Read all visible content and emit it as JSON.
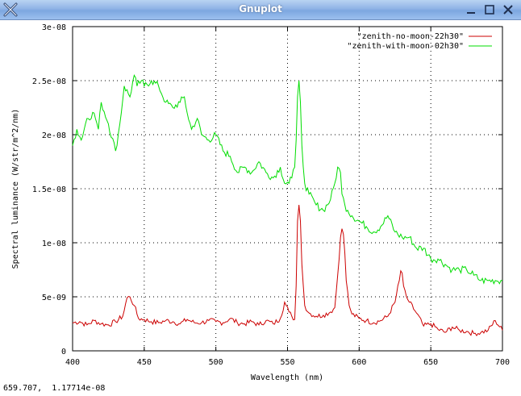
{
  "window": {
    "title": "Gnuplot",
    "app_icon": "x-icon",
    "buttons": [
      "minimize-icon",
      "maximize-icon",
      "close-icon"
    ]
  },
  "status_bar": {
    "coords": "659.707,  1.17714e-08"
  },
  "colors": {
    "series1": "#cc0000",
    "series2": "#00dd00",
    "plot_bg": "#ffffff",
    "titlebar": "#8fb3e6"
  },
  "chart_data": {
    "type": "line",
    "title": "",
    "xlabel": "Wavelength (nm)",
    "ylabel": "Spectral luminance (W/str/m^2/nm)",
    "xlim": [
      400,
      700
    ],
    "ylim": [
      0,
      3e-08
    ],
    "x_ticks": [
      400,
      450,
      500,
      550,
      600,
      650,
      700
    ],
    "x_tick_labels": [
      "400",
      "450",
      "500",
      "550",
      "600",
      "650",
      "700"
    ],
    "y_ticks": [
      0,
      5e-09,
      1e-08,
      1.5e-08,
      2e-08,
      2.5e-08,
      3e-08
    ],
    "y_tick_labels": [
      "0",
      "5e-09",
      "1e-08",
      "1.5e-08",
      "2e-08",
      "2.5e-08",
      "3e-08"
    ],
    "grid": true,
    "legend_position": "top-right",
    "series": [
      {
        "name": "\"zenith-no-moon-22h30\"",
        "color": "#cc0000",
        "x": [
          400,
          405,
          410,
          415,
          420,
          425,
          430,
          435,
          438,
          440,
          443,
          446,
          450,
          455,
          460,
          465,
          470,
          475,
          480,
          485,
          490,
          495,
          500,
          505,
          510,
          515,
          520,
          525,
          530,
          535,
          540,
          545,
          548,
          551,
          553,
          555,
          556,
          557,
          558,
          559,
          560,
          562,
          565,
          570,
          575,
          580,
          583,
          585,
          587,
          588,
          589,
          590,
          591,
          593,
          595,
          600,
          605,
          610,
          615,
          620,
          625,
          628,
          629,
          630,
          631,
          633,
          635,
          640,
          645,
          650,
          655,
          660,
          665,
          670,
          675,
          680,
          685,
          690,
          695,
          700
        ],
        "y": [
          2.6e-09,
          2.7e-09,
          2.4e-09,
          2.8e-09,
          2.5e-09,
          2.4e-09,
          2.7e-09,
          3.2e-09,
          4.9e-09,
          5e-09,
          4.2e-09,
          3e-09,
          2.9e-09,
          2.7e-09,
          2.6e-09,
          2.8e-09,
          2.7e-09,
          2.5e-09,
          2.9e-09,
          2.6e-09,
          2.6e-09,
          2.8e-09,
          2.7e-09,
          2.6e-09,
          3e-09,
          2.6e-09,
          2.5e-09,
          2.7e-09,
          2.4e-09,
          2.8e-09,
          2.5e-09,
          3e-09,
          4.5e-09,
          3.6e-09,
          3.2e-09,
          2.9e-09,
          6e-09,
          1.2e-08,
          1.35e-08,
          1.2e-08,
          8e-09,
          4.2e-09,
          3.5e-09,
          3.2e-09,
          3.3e-09,
          3.6e-09,
          4e-09,
          7e-09,
          1.05e-08,
          1.13e-08,
          1.08e-08,
          9e-09,
          6.5e-09,
          4.2e-09,
          3.4e-09,
          3e-09,
          2.8e-09,
          2.6e-09,
          2.8e-09,
          3.2e-09,
          4.5e-09,
          6.5e-09,
          7.4e-09,
          7.2e-09,
          6e-09,
          5e-09,
          4.5e-09,
          3.5e-09,
          2.3e-09,
          2.5e-09,
          2e-09,
          1.7e-09,
          2.2e-09,
          1.9e-09,
          1.8e-09,
          1.6e-09,
          1.7e-09,
          1.9e-09,
          2.8e-09,
          1.9e-09
        ]
      },
      {
        "name": "\"zenith-with-moon-02h30\"",
        "color": "#00dd00",
        "x": [
          400,
          403,
          406,
          410,
          415,
          418,
          420,
          425,
          430,
          433,
          436,
          440,
          443,
          445,
          448,
          450,
          455,
          460,
          465,
          470,
          475,
          478,
          480,
          483,
          487,
          490,
          495,
          500,
          505,
          510,
          515,
          520,
          525,
          530,
          535,
          540,
          545,
          548,
          551,
          553,
          555,
          556,
          557,
          558,
          559,
          560,
          562,
          565,
          570,
          575,
          580,
          583,
          585,
          587,
          588,
          590,
          592,
          595,
          600,
          605,
          610,
          615,
          620,
          625,
          630,
          635,
          640,
          645,
          650,
          655,
          660,
          665,
          670,
          675,
          680,
          685,
          690,
          695,
          700
        ],
        "y": [
          1.9e-08,
          2.05e-08,
          1.95e-08,
          2.15e-08,
          2.2e-08,
          2.05e-08,
          2.3e-08,
          2.1e-08,
          1.85e-08,
          2.1e-08,
          2.45e-08,
          2.35e-08,
          2.55e-08,
          2.45e-08,
          2.5e-08,
          2.45e-08,
          2.5e-08,
          2.45e-08,
          2.3e-08,
          2.25e-08,
          2.3e-08,
          2.35e-08,
          2.2e-08,
          2.05e-08,
          2.15e-08,
          2e-08,
          1.95e-08,
          2e-08,
          1.85e-08,
          1.8e-08,
          1.65e-08,
          1.7e-08,
          1.65e-08,
          1.75e-08,
          1.65e-08,
          1.6e-08,
          1.7e-08,
          1.55e-08,
          1.55e-08,
          1.6e-08,
          1.7e-08,
          1.95e-08,
          2.35e-08,
          2.5e-08,
          2.3e-08,
          1.9e-08,
          1.55e-08,
          1.45e-08,
          1.35e-08,
          1.3e-08,
          1.4e-08,
          1.55e-08,
          1.7e-08,
          1.65e-08,
          1.45e-08,
          1.35e-08,
          1.3e-08,
          1.25e-08,
          1.2e-08,
          1.15e-08,
          1.1e-08,
          1.15e-08,
          1.25e-08,
          1.1e-08,
          1.05e-08,
          1.05e-08,
          9.5e-09,
          9.5e-09,
          8.5e-09,
          8.5e-09,
          8e-09,
          7.5e-09,
          7.5e-09,
          7.5e-09,
          7e-09,
          6.5e-09,
          6.5e-09,
          6.5e-09,
          6.5e-09
        ]
      }
    ]
  }
}
